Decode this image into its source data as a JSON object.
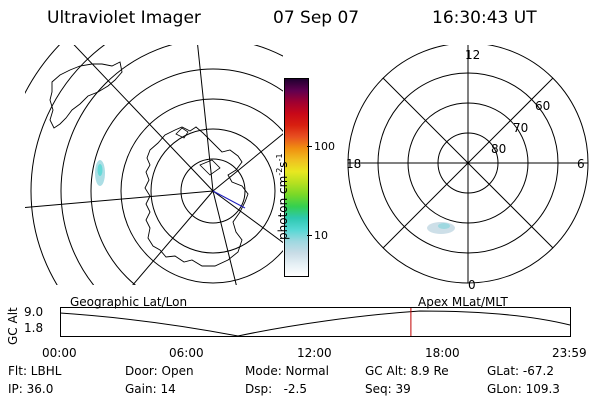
{
  "header": {
    "title": "Ultraviolet Imager",
    "date": "07 Sep 07",
    "time": "16:30:43 UT"
  },
  "left_panel": {
    "projection": "Geographic Lat/Lon"
  },
  "right_panel": {
    "projection": "Apex MLat/MLT",
    "mlt_labels": {
      "top": "12",
      "bottom": "0",
      "left": "18",
      "right": "6"
    },
    "lat_labels": [
      "60",
      "70",
      "80"
    ]
  },
  "colorbar": {
    "unit_label": "photon cm",
    "unit_exp1": "-2",
    "unit_mid": "s",
    "unit_exp2": "-1",
    "ticks": [
      "100",
      "10"
    ],
    "colors": [
      "#ffffff",
      "#e6f0f5",
      "#c8dce6",
      "#9ed8e0",
      "#55d8d4",
      "#2ec8b0",
      "#34d050",
      "#78d828",
      "#b4e020",
      "#e8e820",
      "#f0c020",
      "#f09010",
      "#e85020",
      "#d82010",
      "#c80818",
      "#a00030",
      "#600050",
      "#200030"
    ]
  },
  "timeline": {
    "y_axis_label": "GC Alt",
    "y_ticks": [
      "9.0",
      "1.8"
    ],
    "x_ticks": [
      "00:00",
      "06:00",
      "12:00",
      "18:00",
      "23:59"
    ],
    "current_marker_time": "16:30"
  },
  "info": {
    "filter": "Flt: LBHL",
    "ip": "IP: 36.0",
    "door": "Door: Open",
    "gain": "Gain: 14",
    "mode": "Mode: Normal",
    "dsp": "Dsp:   -2.5",
    "gc_alt": "GC Alt: 8.9 Re",
    "seq": "Seq: 39",
    "glat": "GLat: -67.2",
    "glon": "GLon: 109.3"
  }
}
